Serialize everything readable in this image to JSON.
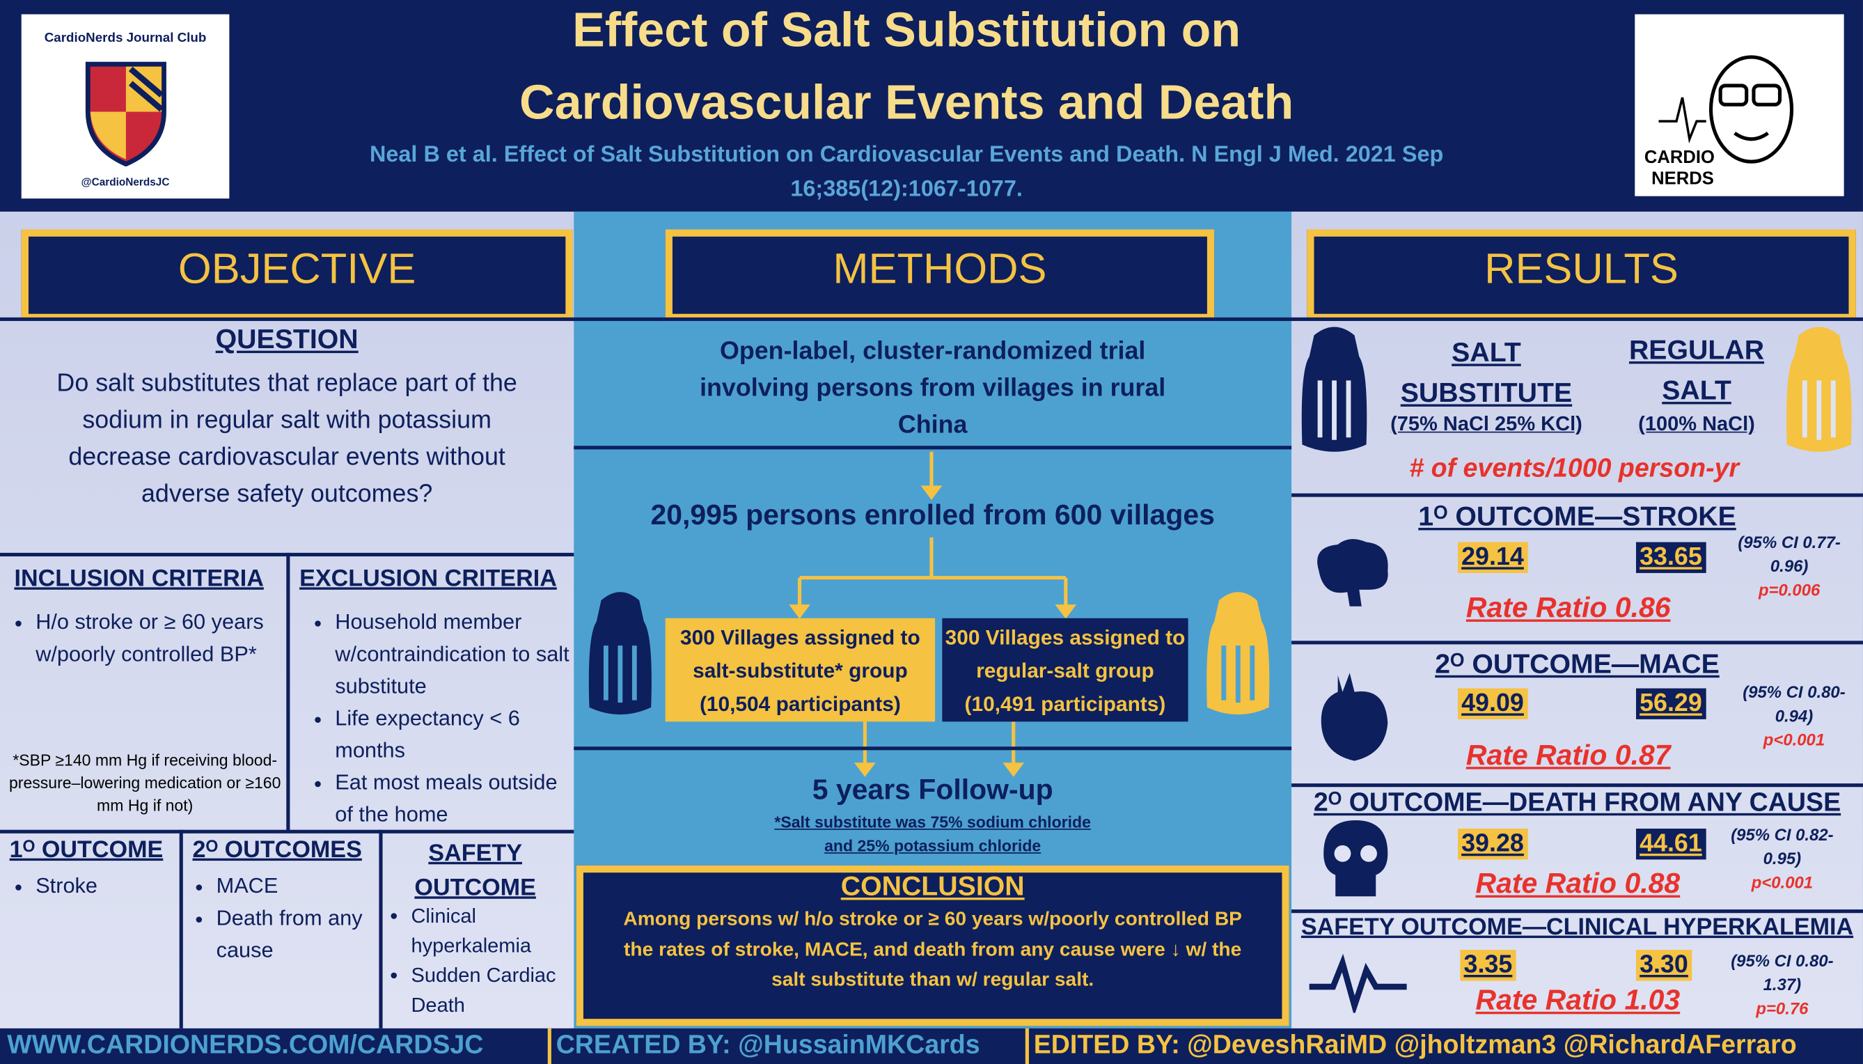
{
  "header": {
    "title_line1": "Effect of Salt Substitution on",
    "title_line2": "Cardiovascular Events and Death",
    "citation_line1": "Neal B et al. Effect of Salt Substitution on Cardiovascular Events and Death. N Engl J Med. 2021 Sep",
    "citation_line2": "16;385(12):1067-1077.",
    "left_logo_arc": "CardioNerds Journal Club",
    "left_logo_handle": "@CardioNerdsJC",
    "right_logo_line1": "CARDIO",
    "right_logo_line2": "NERDS"
  },
  "objective": {
    "heading": "OBJECTIVE",
    "question_title": "QUESTION",
    "question": "Do salt substitutes that replace part of the sodium in regular salt with potassium decrease cardiovascular events without adverse safety outcomes?"
  },
  "inclusion": {
    "title": "INCLUSION CRITERIA",
    "items": [
      "H/o stroke or ≥ 60 years w/poorly controlled BP*"
    ],
    "footnote": "*SBP ≥140 mm Hg if receiving blood-pressure–lowering medication or ≥160 mm Hg if not)"
  },
  "exclusion": {
    "title": "EXCLUSION CRITERIA",
    "items": [
      "Household member w/contraindication to salt substitute",
      "Life expectancy < 6 months",
      "Eat most meals outside of the home"
    ]
  },
  "primary_outcome": {
    "title": "1ᴼ OUTCOME",
    "items": [
      "Stroke"
    ]
  },
  "secondary_outcomes": {
    "title": "2ᴼ OUTCOMES",
    "items": [
      "MACE",
      "Death from any cause"
    ]
  },
  "safety_outcome": {
    "title": "SAFETY OUTCOME",
    "items": [
      "Clinical hyperkalemia",
      "Sudden Cardiac Death"
    ]
  },
  "methods": {
    "heading": "METHODS",
    "design": "Open-label, cluster-randomized trial involving persons from villages in rural China",
    "enrolled": "20,995 persons enrolled from 600 villages",
    "arm_substitute": "300 Villages assigned to salt-substitute* group (10,504 participants)",
    "arm_regular": "300 Villages assigned to regular-salt group (10,491 participants)",
    "followup": "5 years Follow-up",
    "footnote": "*Salt substitute was 75% sodium chloride and 25% potassium chloride"
  },
  "conclusion": {
    "title": "CONCLUSION",
    "text": "Among persons w/ h/o stroke or ≥ 60 years w/poorly controlled BP the rates of stroke, MACE, and death from any cause were ↓ w/ the salt substitute than w/ regular salt."
  },
  "results": {
    "heading": "RESULTS",
    "substitute_label": "SALT SUBSTITUTE",
    "substitute_detail": "(75% NaCl 25% KCl)",
    "regular_label": "REGULAR SALT",
    "regular_detail": "(100% NaCl)",
    "units": "# of events/1000 person-yr",
    "outcomes": [
      {
        "title": "1ᴼ OUTCOME—STROKE",
        "substitute": "29.14",
        "regular": "33.65",
        "ratio": "Rate Ratio 0.86",
        "ci": "(95% CI 0.77-0.96)",
        "p": "p=0.006"
      },
      {
        "title": "2ᴼ OUTCOME—MACE",
        "substitute": "49.09",
        "regular": "56.29",
        "ratio": "Rate Ratio 0.87",
        "ci": "(95% CI 0.80-0.94)",
        "p": "p<0.001"
      },
      {
        "title": "2ᴼ OUTCOME—DEATH FROM ANY CAUSE",
        "substitute": "39.28",
        "regular": "44.61",
        "ratio": "Rate Ratio 0.88",
        "ci": "(95% CI 0.82-0.95)",
        "p": "p<0.001"
      },
      {
        "title": "SAFETY OUTCOME—CLINICAL HYPERKALEMIA",
        "substitute": "3.35",
        "regular": "3.30",
        "ratio": "Rate Ratio 1.03",
        "ci": "(95% CI 0.80-1.37)",
        "p": "p=0.76"
      }
    ]
  },
  "footer": {
    "website": "WWW.CARDIONERDS.COM/CARDSJC",
    "created_by": "CREATED BY: @HussainMKCards",
    "edited_by": "EDITED BY: @DeveshRaiMD @jholtzman3 @RichardAFerraro"
  }
}
